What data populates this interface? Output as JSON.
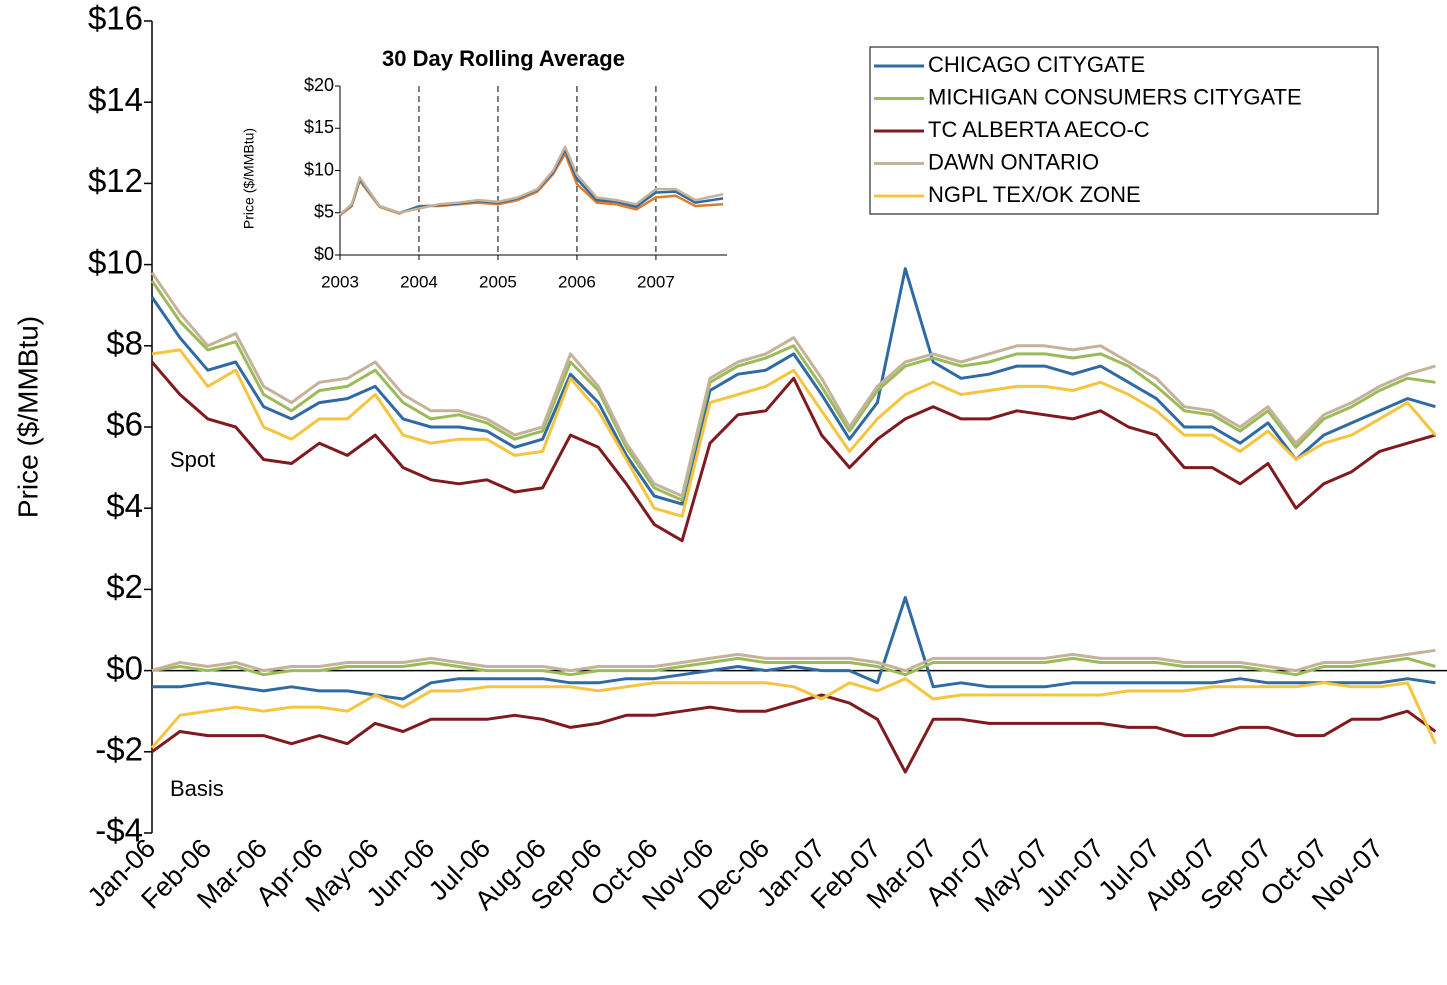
{
  "chart_data": [
    {
      "type": "line",
      "y_label": "Price ($/MMBtu)",
      "annotations": [
        "Spot",
        "Basis"
      ],
      "categories": [
        "Jan-06",
        null,
        "Feb-06",
        null,
        "Mar-06",
        null,
        "Apr-06",
        null,
        "May-06",
        null,
        "Jun-06",
        null,
        "Jul-06",
        null,
        "Aug-06",
        null,
        "Sep-06",
        null,
        "Oct-06",
        null,
        "Nov-06",
        null,
        "Dec-06",
        null,
        "Jan-07",
        null,
        "Feb-07",
        null,
        "Mar-07",
        null,
        "Apr-07",
        null,
        "May-07",
        null,
        "Jun-07",
        null,
        "Jul-07",
        null,
        "Aug-07",
        null,
        "Sep-07",
        null,
        "Oct-07",
        null,
        "Nov-07",
        null,
        null
      ],
      "ylim": [
        -4,
        16
      ],
      "yticks": [
        {
          "value": -4,
          "label": "-$4"
        },
        {
          "value": -2,
          "label": "-$2"
        },
        {
          "value": 0,
          "label": "$0"
        },
        {
          "value": 2,
          "label": "$2"
        },
        {
          "value": 4,
          "label": "$4"
        },
        {
          "value": 6,
          "label": "$6"
        },
        {
          "value": 8,
          "label": "$8"
        },
        {
          "value": 10,
          "label": "$10"
        },
        {
          "value": 12,
          "label": "$12"
        },
        {
          "value": 14,
          "label": "$14"
        },
        {
          "value": 16,
          "label": "$16"
        }
      ],
      "grid": false,
      "legend": "upper right",
      "series": [
        {
          "name": "CHICAGO CITYGATE",
          "color": "#2f6aa3",
          "values": [
            9.2,
            8.2,
            7.4,
            7.6,
            6.5,
            6.2,
            6.6,
            6.7,
            7.0,
            6.2,
            6.0,
            6.0,
            5.9,
            5.5,
            5.7,
            7.3,
            6.6,
            5.3,
            4.3,
            4.1,
            6.9,
            7.3,
            7.4,
            7.8,
            6.8,
            5.7,
            6.6,
            9.9,
            7.6,
            7.2,
            7.3,
            7.5,
            7.5,
            7.3,
            7.5,
            7.1,
            6.7,
            6.0,
            6.0,
            5.6,
            6.1,
            5.2,
            5.8,
            6.1,
            6.4,
            6.7,
            6.5
          ],
          "basis": [
            -0.4,
            -0.4,
            -0.3,
            -0.4,
            -0.5,
            -0.4,
            -0.5,
            -0.5,
            -0.6,
            -0.7,
            -0.3,
            -0.2,
            -0.2,
            -0.2,
            -0.2,
            -0.3,
            -0.3,
            -0.2,
            -0.2,
            -0.1,
            0.0,
            0.1,
            0.0,
            0.1,
            0.0,
            0.0,
            -0.3,
            1.8,
            -0.4,
            -0.3,
            -0.4,
            -0.4,
            -0.4,
            -0.3,
            -0.3,
            -0.3,
            -0.3,
            -0.3,
            -0.3,
            -0.2,
            -0.3,
            -0.3,
            -0.3,
            -0.3,
            -0.3,
            -0.2,
            -0.3
          ]
        },
        {
          "name": "MICHIGAN CONSUMERS CITYGATE",
          "color": "#9bbb59",
          "values": [
            9.6,
            8.6,
            7.9,
            8.1,
            6.8,
            6.4,
            6.9,
            7.0,
            7.4,
            6.6,
            6.2,
            6.3,
            6.1,
            5.7,
            5.9,
            7.6,
            6.9,
            5.5,
            4.5,
            4.2,
            7.1,
            7.5,
            7.7,
            8.0,
            7.0,
            5.9,
            6.9,
            7.5,
            7.7,
            7.5,
            7.6,
            7.8,
            7.8,
            7.7,
            7.8,
            7.5,
            7.0,
            6.4,
            6.3,
            5.9,
            6.4,
            5.5,
            6.2,
            6.5,
            6.9,
            7.2,
            7.1
          ],
          "basis": [
            0.0,
            0.1,
            0.0,
            0.1,
            -0.1,
            0.0,
            0.0,
            0.1,
            0.1,
            0.1,
            0.2,
            0.1,
            0.0,
            0.0,
            0.0,
            -0.1,
            0.0,
            0.0,
            0.0,
            0.1,
            0.2,
            0.3,
            0.2,
            0.2,
            0.2,
            0.2,
            0.1,
            -0.1,
            0.2,
            0.2,
            0.2,
            0.2,
            0.2,
            0.3,
            0.2,
            0.2,
            0.2,
            0.1,
            0.1,
            0.1,
            0.0,
            -0.1,
            0.1,
            0.1,
            0.2,
            0.3,
            0.1
          ]
        },
        {
          "name": "TC ALBERTA AECO-C",
          "color": "#7f1a1f",
          "values": [
            7.6,
            6.8,
            6.2,
            6.0,
            5.2,
            5.1,
            5.6,
            5.3,
            5.8,
            5.0,
            4.7,
            4.6,
            4.7,
            4.4,
            4.5,
            5.8,
            5.5,
            4.6,
            3.6,
            3.2,
            5.6,
            6.3,
            6.4,
            7.2,
            5.8,
            5.0,
            5.7,
            6.2,
            6.5,
            6.2,
            6.2,
            6.4,
            6.3,
            6.2,
            6.4,
            6.0,
            5.8,
            5.0,
            5.0,
            4.6,
            5.1,
            4.0,
            4.6,
            4.9,
            5.4,
            5.6,
            5.8
          ],
          "basis": [
            -2.0,
            -1.5,
            -1.6,
            -1.6,
            -1.6,
            -1.8,
            -1.6,
            -1.8,
            -1.3,
            -1.5,
            -1.2,
            -1.2,
            -1.2,
            -1.1,
            -1.2,
            -1.4,
            -1.3,
            -1.1,
            -1.1,
            -1.0,
            -0.9,
            -1.0,
            -1.0,
            -0.8,
            -0.6,
            -0.8,
            -1.2,
            -2.5,
            -1.2,
            -1.2,
            -1.3,
            -1.3,
            -1.3,
            -1.3,
            -1.3,
            -1.4,
            -1.4,
            -1.6,
            -1.6,
            -1.4,
            -1.4,
            -1.6,
            -1.6,
            -1.2,
            -1.2,
            -1.0,
            -1.5
          ]
        },
        {
          "name": "DAWN ONTARIO",
          "color": "#c4b29b",
          "values": [
            9.8,
            8.8,
            8.0,
            8.3,
            7.0,
            6.6,
            7.1,
            7.2,
            7.6,
            6.8,
            6.4,
            6.4,
            6.2,
            5.8,
            6.0,
            7.8,
            7.0,
            5.6,
            4.6,
            4.3,
            7.2,
            7.6,
            7.8,
            8.2,
            7.2,
            6.0,
            7.0,
            7.6,
            7.8,
            7.6,
            7.8,
            8.0,
            8.0,
            7.9,
            8.0,
            7.6,
            7.2,
            6.5,
            6.4,
            6.0,
            6.5,
            5.6,
            6.3,
            6.6,
            7.0,
            7.3,
            7.5
          ],
          "basis": [
            0.0,
            0.2,
            0.1,
            0.2,
            0.0,
            0.1,
            0.1,
            0.2,
            0.2,
            0.2,
            0.3,
            0.2,
            0.1,
            0.1,
            0.1,
            0.0,
            0.1,
            0.1,
            0.1,
            0.2,
            0.3,
            0.4,
            0.3,
            0.3,
            0.3,
            0.3,
            0.2,
            0.0,
            0.3,
            0.3,
            0.3,
            0.3,
            0.3,
            0.4,
            0.3,
            0.3,
            0.3,
            0.2,
            0.2,
            0.2,
            0.1,
            0.0,
            0.2,
            0.2,
            0.3,
            0.4,
            0.5
          ]
        },
        {
          "name": "NGPL TEX/OK ZONE",
          "color": "#f5c440",
          "values": [
            7.8,
            7.9,
            7.0,
            7.4,
            6.0,
            5.7,
            6.2,
            6.2,
            6.8,
            5.8,
            5.6,
            5.7,
            5.7,
            5.3,
            5.4,
            7.2,
            6.4,
            5.2,
            4.0,
            3.8,
            6.6,
            6.8,
            7.0,
            7.4,
            6.4,
            5.4,
            6.2,
            6.8,
            7.1,
            6.8,
            6.9,
            7.0,
            7.0,
            6.9,
            7.1,
            6.8,
            6.4,
            5.8,
            5.8,
            5.4,
            5.9,
            5.2,
            5.6,
            5.8,
            6.2,
            6.6,
            5.8
          ],
          "basis": [
            -1.9,
            -1.1,
            -1.0,
            -0.9,
            -1.0,
            -0.9,
            -0.9,
            -1.0,
            -0.6,
            -0.9,
            -0.5,
            -0.5,
            -0.4,
            -0.4,
            -0.4,
            -0.4,
            -0.5,
            -0.4,
            -0.3,
            -0.3,
            -0.3,
            -0.3,
            -0.3,
            -0.4,
            -0.7,
            -0.3,
            -0.5,
            -0.2,
            -0.7,
            -0.6,
            -0.6,
            -0.6,
            -0.6,
            -0.6,
            -0.6,
            -0.5,
            -0.5,
            -0.5,
            -0.4,
            -0.4,
            -0.4,
            -0.4,
            -0.3,
            -0.4,
            -0.4,
            -0.3,
            -1.8
          ]
        }
      ]
    },
    {
      "type": "line",
      "title": "30 Day Rolling Average",
      "y_label": "Price ($/MMBtu)",
      "x": [
        2003,
        2003.15,
        2003.25,
        2003.5,
        2003.75,
        2004,
        2004.25,
        2004.5,
        2004.75,
        2005,
        2005.25,
        2005.5,
        2005.7,
        2005.85,
        2006,
        2006.25,
        2006.5,
        2006.75,
        2007,
        2007.25,
        2007.5,
        2007.85
      ],
      "xlim": [
        2003,
        2007.9
      ],
      "xticks": [
        2003,
        2004,
        2005,
        2006,
        2007
      ],
      "ylim": [
        0,
        20
      ],
      "yticks": [
        {
          "value": 0,
          "label": "$0"
        },
        {
          "value": 5,
          "label": "$5"
        },
        {
          "value": 10,
          "label": "$10"
        },
        {
          "value": 15,
          "label": "$15"
        },
        {
          "value": 20,
          "label": "$20"
        }
      ],
      "grid": true,
      "series": [
        {
          "color": "#e07b2a",
          "values": [
            4.7,
            5.8,
            8.8,
            5.7,
            4.9,
            5.8,
            5.8,
            6.0,
            6.2,
            6.0,
            6.5,
            7.5,
            9.6,
            12.0,
            8.4,
            6.2,
            6.0,
            5.4,
            6.8,
            7.0,
            5.8,
            6.0
          ]
        },
        {
          "color": "#2f6aa3",
          "values": [
            4.8,
            5.9,
            9.0,
            5.8,
            5.0,
            5.7,
            5.9,
            6.1,
            6.4,
            6.2,
            6.7,
            7.7,
            9.8,
            12.5,
            9.0,
            6.5,
            6.3,
            5.7,
            7.4,
            7.5,
            6.2,
            6.7
          ]
        },
        {
          "color": "#c4b29b",
          "values": [
            4.8,
            6.0,
            9.2,
            5.8,
            5.0,
            5.5,
            6.0,
            6.2,
            6.5,
            6.3,
            6.8,
            7.8,
            10.0,
            12.8,
            9.5,
            6.8,
            6.5,
            6.0,
            7.8,
            7.8,
            6.5,
            7.2
          ]
        }
      ]
    }
  ]
}
